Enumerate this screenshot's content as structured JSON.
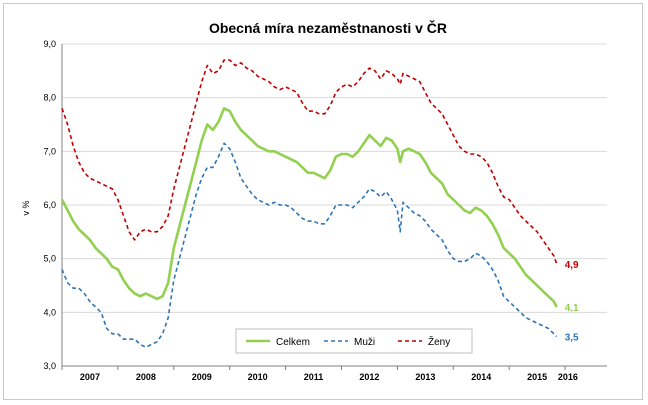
{
  "chart_data": {
    "type": "line",
    "title": "Obecná míra nezaměstnanosti v ČR",
    "ylabel": "v %",
    "xlabel": "",
    "ylim": [
      3.0,
      9.0
    ],
    "yticks": [
      "3,0",
      "4,0",
      "5,0",
      "6,0",
      "7,0",
      "8,0",
      "9,0"
    ],
    "xlim": [
      2006.5,
      2016.25
    ],
    "xticks": [
      {
        "label": "2007",
        "x": 2007.0
      },
      {
        "label": "2008",
        "x": 2008.0
      },
      {
        "label": "2009",
        "x": 2009.0
      },
      {
        "label": "2010",
        "x": 2010.0
      },
      {
        "label": "2011",
        "x": 2011.0
      },
      {
        "label": "2012",
        "x": 2012.0
      },
      {
        "label": "2013",
        "x": 2013.0
      },
      {
        "label": "2014",
        "x": 2014.0
      },
      {
        "label": "2015",
        "x": 2015.0
      },
      {
        "label": "2016",
        "x": 2015.55
      }
    ],
    "legend_position": "bottom-center",
    "grid": true,
    "series": [
      {
        "name": "Celkem",
        "color": "#92d050",
        "style": "solid",
        "end_label": "4,1",
        "points": [
          [
            2006.5,
            6.1
          ],
          [
            2006.6,
            5.9
          ],
          [
            2006.7,
            5.7
          ],
          [
            2006.8,
            5.55
          ],
          [
            2006.9,
            5.45
          ],
          [
            2007.0,
            5.35
          ],
          [
            2007.1,
            5.2
          ],
          [
            2007.2,
            5.1
          ],
          [
            2007.3,
            5.0
          ],
          [
            2007.4,
            4.85
          ],
          [
            2007.5,
            4.8
          ],
          [
            2007.6,
            4.6
          ],
          [
            2007.7,
            4.45
          ],
          [
            2007.8,
            4.35
          ],
          [
            2007.9,
            4.3
          ],
          [
            2008.0,
            4.35
          ],
          [
            2008.1,
            4.3
          ],
          [
            2008.2,
            4.25
          ],
          [
            2008.3,
            4.3
          ],
          [
            2008.4,
            4.55
          ],
          [
            2008.5,
            5.2
          ],
          [
            2008.6,
            5.6
          ],
          [
            2008.7,
            6.0
          ],
          [
            2008.8,
            6.4
          ],
          [
            2008.9,
            6.8
          ],
          [
            2009.0,
            7.2
          ],
          [
            2009.1,
            7.5
          ],
          [
            2009.2,
            7.4
          ],
          [
            2009.3,
            7.55
          ],
          [
            2009.4,
            7.8
          ],
          [
            2009.5,
            7.75
          ],
          [
            2009.6,
            7.55
          ],
          [
            2009.7,
            7.4
          ],
          [
            2009.8,
            7.3
          ],
          [
            2009.9,
            7.2
          ],
          [
            2010.0,
            7.1
          ],
          [
            2010.1,
            7.05
          ],
          [
            2010.2,
            7.0
          ],
          [
            2010.3,
            7.0
          ],
          [
            2010.4,
            6.95
          ],
          [
            2010.5,
            6.9
          ],
          [
            2010.6,
            6.85
          ],
          [
            2010.7,
            6.8
          ],
          [
            2010.8,
            6.7
          ],
          [
            2010.9,
            6.6
          ],
          [
            2011.0,
            6.6
          ],
          [
            2011.1,
            6.55
          ],
          [
            2011.2,
            6.5
          ],
          [
            2011.3,
            6.65
          ],
          [
            2011.4,
            6.9
          ],
          [
            2011.5,
            6.95
          ],
          [
            2011.6,
            6.95
          ],
          [
            2011.7,
            6.9
          ],
          [
            2011.8,
            7.0
          ],
          [
            2011.9,
            7.15
          ],
          [
            2012.0,
            7.3
          ],
          [
            2012.1,
            7.2
          ],
          [
            2012.2,
            7.1
          ],
          [
            2012.3,
            7.25
          ],
          [
            2012.4,
            7.2
          ],
          [
            2012.5,
            7.05
          ],
          [
            2012.55,
            6.8
          ],
          [
            2012.6,
            7.0
          ],
          [
            2012.7,
            7.05
          ],
          [
            2012.8,
            7.0
          ],
          [
            2012.9,
            6.95
          ],
          [
            2013.0,
            6.8
          ],
          [
            2013.1,
            6.6
          ],
          [
            2013.2,
            6.5
          ],
          [
            2013.3,
            6.4
          ],
          [
            2013.4,
            6.2
          ],
          [
            2013.5,
            6.1
          ],
          [
            2013.6,
            6.0
          ],
          [
            2013.7,
            5.9
          ],
          [
            2013.8,
            5.85
          ],
          [
            2013.9,
            5.95
          ],
          [
            2014.0,
            5.9
          ],
          [
            2014.1,
            5.8
          ],
          [
            2014.2,
            5.65
          ],
          [
            2014.3,
            5.45
          ],
          [
            2014.4,
            5.2
          ],
          [
            2014.5,
            5.1
          ],
          [
            2014.6,
            5.0
          ],
          [
            2014.7,
            4.85
          ],
          [
            2014.8,
            4.7
          ],
          [
            2014.9,
            4.6
          ],
          [
            2015.0,
            4.5
          ],
          [
            2015.1,
            4.4
          ],
          [
            2015.2,
            4.3
          ],
          [
            2015.3,
            4.2
          ],
          [
            2015.35,
            4.1
          ]
        ]
      },
      {
        "name": "Muži",
        "color": "#2e75b6",
        "style": "dashed",
        "end_label": "3,5",
        "points": [
          [
            2006.5,
            4.8
          ],
          [
            2006.6,
            4.55
          ],
          [
            2006.7,
            4.45
          ],
          [
            2006.8,
            4.45
          ],
          [
            2006.9,
            4.35
          ],
          [
            2007.0,
            4.2
          ],
          [
            2007.1,
            4.1
          ],
          [
            2007.2,
            4.0
          ],
          [
            2007.3,
            3.7
          ],
          [
            2007.4,
            3.6
          ],
          [
            2007.5,
            3.6
          ],
          [
            2007.6,
            3.5
          ],
          [
            2007.7,
            3.5
          ],
          [
            2007.8,
            3.5
          ],
          [
            2007.9,
            3.4
          ],
          [
            2008.0,
            3.35
          ],
          [
            2008.1,
            3.4
          ],
          [
            2008.2,
            3.45
          ],
          [
            2008.3,
            3.6
          ],
          [
            2008.4,
            3.9
          ],
          [
            2008.5,
            4.6
          ],
          [
            2008.6,
            5.0
          ],
          [
            2008.7,
            5.4
          ],
          [
            2008.8,
            5.8
          ],
          [
            2008.9,
            6.2
          ],
          [
            2009.0,
            6.5
          ],
          [
            2009.1,
            6.7
          ],
          [
            2009.2,
            6.7
          ],
          [
            2009.3,
            6.9
          ],
          [
            2009.4,
            7.15
          ],
          [
            2009.5,
            7.05
          ],
          [
            2009.6,
            6.8
          ],
          [
            2009.7,
            6.5
          ],
          [
            2009.8,
            6.35
          ],
          [
            2009.9,
            6.2
          ],
          [
            2010.0,
            6.1
          ],
          [
            2010.1,
            6.05
          ],
          [
            2010.2,
            6.0
          ],
          [
            2010.3,
            6.05
          ],
          [
            2010.4,
            6.0
          ],
          [
            2010.5,
            6.0
          ],
          [
            2010.6,
            5.95
          ],
          [
            2010.7,
            5.85
          ],
          [
            2010.8,
            5.75
          ],
          [
            2010.9,
            5.7
          ],
          [
            2011.0,
            5.7
          ],
          [
            2011.1,
            5.65
          ],
          [
            2011.2,
            5.65
          ],
          [
            2011.3,
            5.8
          ],
          [
            2011.4,
            6.0
          ],
          [
            2011.5,
            6.0
          ],
          [
            2011.6,
            6.0
          ],
          [
            2011.7,
            5.95
          ],
          [
            2011.8,
            6.05
          ],
          [
            2011.9,
            6.15
          ],
          [
            2012.0,
            6.3
          ],
          [
            2012.1,
            6.25
          ],
          [
            2012.2,
            6.15
          ],
          [
            2012.3,
            6.25
          ],
          [
            2012.4,
            6.1
          ],
          [
            2012.5,
            5.9
          ],
          [
            2012.55,
            5.5
          ],
          [
            2012.6,
            6.05
          ],
          [
            2012.7,
            5.95
          ],
          [
            2012.8,
            5.85
          ],
          [
            2012.9,
            5.8
          ],
          [
            2013.0,
            5.7
          ],
          [
            2013.1,
            5.55
          ],
          [
            2013.2,
            5.45
          ],
          [
            2013.3,
            5.35
          ],
          [
            2013.4,
            5.15
          ],
          [
            2013.5,
            5.0
          ],
          [
            2013.6,
            4.95
          ],
          [
            2013.7,
            4.95
          ],
          [
            2013.8,
            5.0
          ],
          [
            2013.9,
            5.1
          ],
          [
            2014.0,
            5.05
          ],
          [
            2014.1,
            4.95
          ],
          [
            2014.2,
            4.8
          ],
          [
            2014.3,
            4.6
          ],
          [
            2014.4,
            4.3
          ],
          [
            2014.5,
            4.2
          ],
          [
            2014.6,
            4.1
          ],
          [
            2014.7,
            4.0
          ],
          [
            2014.8,
            3.9
          ],
          [
            2014.9,
            3.85
          ],
          [
            2015.0,
            3.8
          ],
          [
            2015.1,
            3.75
          ],
          [
            2015.2,
            3.7
          ],
          [
            2015.3,
            3.6
          ],
          [
            2015.35,
            3.55
          ]
        ]
      },
      {
        "name": "Ženy",
        "color": "#c00000",
        "style": "dashed",
        "end_label": "4,9",
        "points": [
          [
            2006.5,
            7.8
          ],
          [
            2006.6,
            7.5
          ],
          [
            2006.7,
            7.1
          ],
          [
            2006.8,
            6.8
          ],
          [
            2006.9,
            6.6
          ],
          [
            2007.0,
            6.5
          ],
          [
            2007.1,
            6.45
          ],
          [
            2007.2,
            6.4
          ],
          [
            2007.3,
            6.35
          ],
          [
            2007.4,
            6.3
          ],
          [
            2007.5,
            6.1
          ],
          [
            2007.6,
            5.8
          ],
          [
            2007.7,
            5.5
          ],
          [
            2007.8,
            5.35
          ],
          [
            2007.9,
            5.5
          ],
          [
            2008.0,
            5.55
          ],
          [
            2008.1,
            5.5
          ],
          [
            2008.2,
            5.5
          ],
          [
            2008.3,
            5.6
          ],
          [
            2008.4,
            5.8
          ],
          [
            2008.5,
            6.3
          ],
          [
            2008.6,
            6.7
          ],
          [
            2008.7,
            7.1
          ],
          [
            2008.8,
            7.5
          ],
          [
            2008.9,
            7.9
          ],
          [
            2009.0,
            8.3
          ],
          [
            2009.1,
            8.6
          ],
          [
            2009.2,
            8.45
          ],
          [
            2009.3,
            8.5
          ],
          [
            2009.4,
            8.7
          ],
          [
            2009.5,
            8.7
          ],
          [
            2009.6,
            8.6
          ],
          [
            2009.7,
            8.65
          ],
          [
            2009.8,
            8.55
          ],
          [
            2009.9,
            8.5
          ],
          [
            2010.0,
            8.4
          ],
          [
            2010.1,
            8.35
          ],
          [
            2010.2,
            8.3
          ],
          [
            2010.3,
            8.2
          ],
          [
            2010.4,
            8.15
          ],
          [
            2010.5,
            8.2
          ],
          [
            2010.6,
            8.15
          ],
          [
            2010.7,
            8.1
          ],
          [
            2010.8,
            7.9
          ],
          [
            2010.9,
            7.75
          ],
          [
            2011.0,
            7.75
          ],
          [
            2011.1,
            7.7
          ],
          [
            2011.2,
            7.7
          ],
          [
            2011.3,
            7.85
          ],
          [
            2011.4,
            8.1
          ],
          [
            2011.5,
            8.2
          ],
          [
            2011.6,
            8.25
          ],
          [
            2011.7,
            8.2
          ],
          [
            2011.8,
            8.3
          ],
          [
            2011.9,
            8.45
          ],
          [
            2012.0,
            8.55
          ],
          [
            2012.1,
            8.5
          ],
          [
            2012.2,
            8.35
          ],
          [
            2012.3,
            8.5
          ],
          [
            2012.4,
            8.45
          ],
          [
            2012.5,
            8.35
          ],
          [
            2012.55,
            8.25
          ],
          [
            2012.6,
            8.45
          ],
          [
            2012.7,
            8.4
          ],
          [
            2012.8,
            8.35
          ],
          [
            2012.9,
            8.3
          ],
          [
            2013.0,
            8.1
          ],
          [
            2013.1,
            7.9
          ],
          [
            2013.2,
            7.8
          ],
          [
            2013.3,
            7.7
          ],
          [
            2013.4,
            7.5
          ],
          [
            2013.5,
            7.3
          ],
          [
            2013.6,
            7.1
          ],
          [
            2013.7,
            7.0
          ],
          [
            2013.8,
            6.95
          ],
          [
            2013.9,
            6.95
          ],
          [
            2014.0,
            6.9
          ],
          [
            2014.1,
            6.8
          ],
          [
            2014.2,
            6.6
          ],
          [
            2014.3,
            6.35
          ],
          [
            2014.4,
            6.15
          ],
          [
            2014.5,
            6.1
          ],
          [
            2014.6,
            5.95
          ],
          [
            2014.7,
            5.8
          ],
          [
            2014.8,
            5.7
          ],
          [
            2014.9,
            5.6
          ],
          [
            2015.0,
            5.5
          ],
          [
            2015.1,
            5.35
          ],
          [
            2015.2,
            5.2
          ],
          [
            2015.3,
            5.05
          ],
          [
            2015.35,
            4.9
          ]
        ]
      }
    ]
  }
}
